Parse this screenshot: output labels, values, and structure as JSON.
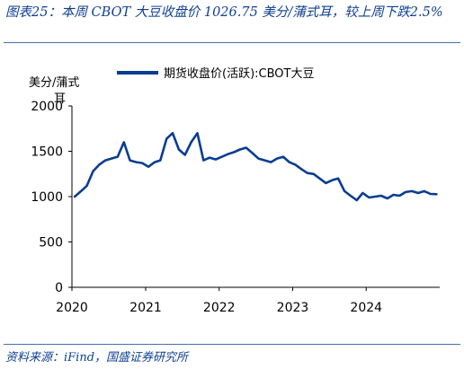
{
  "header": {
    "title": "图表25：本周 CBOT 大豆收盘价 1026.75 美分/蒲式耳，较上周下跌2.5%"
  },
  "footer": {
    "source": "资料来源：iFind，国盛证券研究所"
  },
  "colors": {
    "series": "#0a3d91",
    "title": "#0f3f91",
    "axis": "#000000"
  },
  "chart_data": {
    "type": "line",
    "title": "",
    "ylabel": "美分/蒲式耳",
    "xlabel": "",
    "ylim": [
      0,
      2000
    ],
    "xlim": [
      "2020-01-01",
      "2024-12-31"
    ],
    "yticks": [
      0,
      500,
      1000,
      1500,
      2000
    ],
    "xticks": [
      "2020",
      "2021",
      "2022",
      "2023",
      "2024"
    ],
    "grid": false,
    "legend_position": "top",
    "series": [
      {
        "name": "期货收盘价(活跃):CBOT大豆",
        "x": [
          "2020-01",
          "2020-02",
          "2020-03",
          "2020-04",
          "2020-05",
          "2020-06",
          "2020-07",
          "2020-08",
          "2020-09",
          "2020-10",
          "2020-11",
          "2020-12",
          "2021-01",
          "2021-02",
          "2021-03",
          "2021-04",
          "2021-05",
          "2021-06",
          "2021-07",
          "2021-08",
          "2021-09",
          "2021-10",
          "2021-11",
          "2021-12",
          "2022-01",
          "2022-02",
          "2022-03",
          "2022-04",
          "2022-05",
          "2022-06",
          "2022-07",
          "2022-08",
          "2022-09",
          "2022-10",
          "2022-11",
          "2022-12",
          "2023-01",
          "2023-02",
          "2023-03",
          "2023-04",
          "2023-05",
          "2023-06",
          "2023-07",
          "2023-08",
          "2023-09",
          "2023-10",
          "2023-11",
          "2023-12",
          "2024-01",
          "2024-02",
          "2024-03",
          "2024-04",
          "2024-05",
          "2024-06",
          "2024-07",
          "2024-08",
          "2024-09",
          "2024-10",
          "2024-11",
          "2024-12"
        ],
        "values": [
          1000,
          1060,
          1120,
          1280,
          1350,
          1400,
          1420,
          1440,
          1600,
          1400,
          1380,
          1370,
          1330,
          1380,
          1400,
          1640,
          1700,
          1520,
          1460,
          1600,
          1700,
          1400,
          1430,
          1410,
          1440,
          1470,
          1490,
          1520,
          1540,
          1480,
          1420,
          1400,
          1380,
          1420,
          1440,
          1380,
          1350,
          1300,
          1260,
          1250,
          1200,
          1150,
          1180,
          1200,
          1060,
          1010,
          960,
          1040,
          990,
          1000,
          1010,
          980,
          1020,
          1010,
          1050,
          1060,
          1040,
          1060,
          1030,
          1026.75
        ]
      }
    ]
  }
}
